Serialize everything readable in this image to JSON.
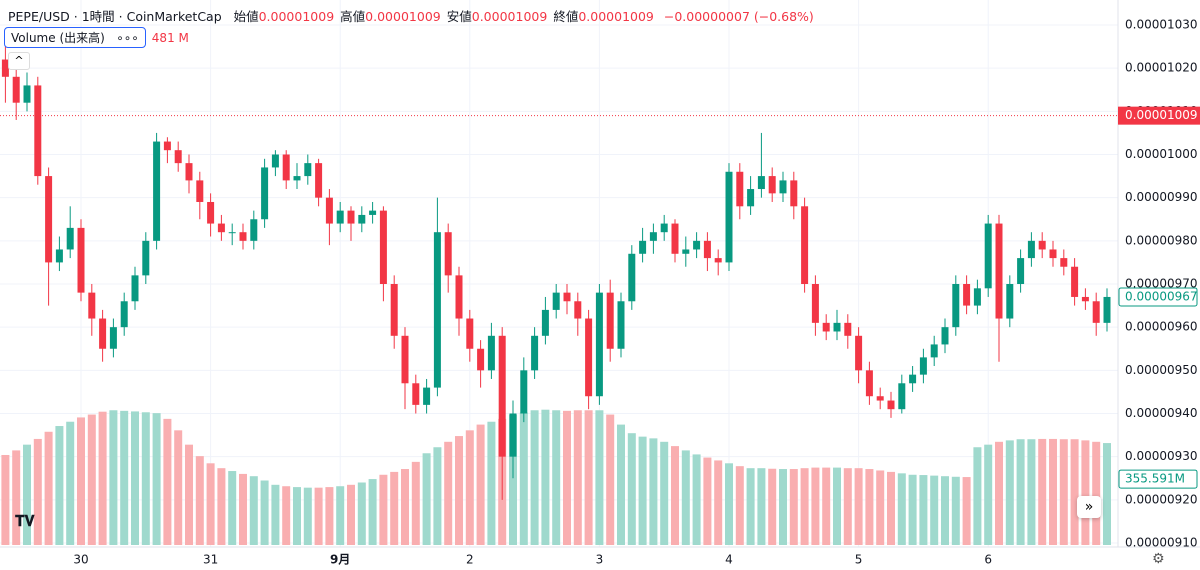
{
  "chart_data": {
    "type": "candlestick",
    "title": "PEPE/USD · 1時間 · CoinMarketCap",
    "legend": [
      {
        "label": "始値",
        "value": "0.00001009"
      },
      {
        "label": "高値",
        "value": "0.00001009"
      },
      {
        "label": "安値",
        "value": "0.00001009"
      },
      {
        "label": "終値",
        "value": "0.00001009"
      }
    ],
    "change": "−0.00000007 (−0.68%)",
    "categories": [
      null,
      null,
      null,
      null,
      null,
      null,
      null,
      "30",
      null,
      null,
      null,
      null,
      null,
      null,
      null,
      null,
      null,
      null,
      null,
      "31",
      null,
      null,
      null,
      null,
      null,
      null,
      null,
      null,
      null,
      null,
      null,
      "9月",
      null,
      null,
      null,
      null,
      null,
      null,
      null,
      null,
      null,
      null,
      null,
      "2",
      null,
      null,
      null,
      null,
      null,
      null,
      null,
      null,
      null,
      null,
      null,
      "3",
      null,
      null,
      null,
      null,
      null,
      null,
      null,
      null,
      null,
      null,
      null,
      "4",
      null,
      null,
      null,
      null,
      null,
      null,
      null,
      null,
      null,
      null,
      null,
      "5",
      null,
      null,
      null,
      null,
      null,
      null,
      null,
      null,
      null,
      null,
      null,
      "6",
      null,
      null,
      null,
      null,
      null,
      null,
      null,
      null,
      null,
      null,
      null
    ],
    "open": [
      1.022e-05,
      1.018e-05,
      1.012e-05,
      1.016e-05,
      9.95e-06,
      9.75e-06,
      9.78e-06,
      9.83e-06,
      9.68e-06,
      9.62e-06,
      9.55e-06,
      9.6e-06,
      9.66e-06,
      9.72e-06,
      9.8e-06,
      1.003e-05,
      1.001e-05,
      9.98e-06,
      9.94e-06,
      9.89e-06,
      9.84e-06,
      9.82e-06,
      9.82e-06,
      9.8e-06,
      9.85e-06,
      9.97e-06,
      1e-05,
      9.94e-06,
      9.95e-06,
      9.98e-06,
      9.9e-06,
      9.84e-06,
      9.87e-06,
      9.84e-06,
      9.86e-06,
      9.87e-06,
      9.7e-06,
      9.58e-06,
      9.47e-06,
      9.42e-06,
      9.46e-06,
      9.82e-06,
      9.72e-06,
      9.62e-06,
      9.55e-06,
      9.5e-06,
      9.58e-06,
      9.3e-06,
      9.4e-06,
      9.5e-06,
      9.58e-06,
      9.64e-06,
      9.68e-06,
      9.66e-06,
      9.62e-06,
      9.44e-06,
      9.68e-06,
      9.55e-06,
      9.66e-06,
      9.77e-06,
      9.8e-06,
      9.82e-06,
      9.84e-06,
      9.77e-06,
      9.78e-06,
      9.8e-06,
      9.76e-06,
      9.75e-06,
      9.96e-06,
      9.88e-06,
      9.92e-06,
      9.95e-06,
      9.91e-06,
      9.94e-06,
      9.88e-06,
      9.7e-06,
      9.61e-06,
      9.59e-06,
      9.61e-06,
      9.58e-06,
      9.5e-06,
      9.44e-06,
      9.43e-06,
      9.41e-06,
      9.47e-06,
      9.49e-06,
      9.53e-06,
      9.56e-06,
      9.6e-06,
      9.7e-06,
      9.65e-06,
      9.69e-06,
      9.84e-06,
      9.62e-06,
      9.7e-06,
      9.76e-06,
      9.8e-06,
      9.78e-06,
      9.76e-06,
      9.74e-06,
      9.67e-06,
      9.66e-06,
      9.61e-06
    ],
    "high": [
      1.025e-05,
      1.02e-05,
      1.019e-05,
      1.018e-05,
      9.97e-06,
      9.81e-06,
      9.88e-06,
      9.85e-06,
      9.7e-06,
      9.64e-06,
      9.62e-06,
      9.68e-06,
      9.74e-06,
      9.82e-06,
      1.005e-05,
      1.004e-05,
      1.003e-05,
      1e-05,
      9.96e-06,
      9.91e-06,
      9.86e-06,
      9.84e-06,
      9.84e-06,
      9.87e-06,
      9.99e-06,
      1.001e-05,
      1.001e-05,
      9.98e-06,
      1e-05,
      9.99e-06,
      9.92e-06,
      9.89e-06,
      9.88e-06,
      9.88e-06,
      9.89e-06,
      9.88e-06,
      9.72e-06,
      9.6e-06,
      9.49e-06,
      9.48e-06,
      9.9e-06,
      9.84e-06,
      9.74e-06,
      9.64e-06,
      9.57e-06,
      9.61e-06,
      9.6e-06,
      9.43e-06,
      9.53e-06,
      9.6e-06,
      9.67e-06,
      9.7e-06,
      9.7e-06,
      9.68e-06,
      9.64e-06,
      9.7e-06,
      9.71e-06,
      9.68e-06,
      9.79e-06,
      9.83e-06,
      9.84e-06,
      9.86e-06,
      9.85e-06,
      9.81e-06,
      9.82e-06,
      9.82e-06,
      9.78e-06,
      9.98e-06,
      9.98e-06,
      9.95e-06,
      1.005e-05,
      9.97e-06,
      9.96e-06,
      9.96e-06,
      9.9e-06,
      9.72e-06,
      9.63e-06,
      9.64e-06,
      9.63e-06,
      9.6e-06,
      9.52e-06,
      9.46e-06,
      9.45e-06,
      9.49e-06,
      9.51e-06,
      9.55e-06,
      9.58e-06,
      9.62e-06,
      9.72e-06,
      9.72e-06,
      9.71e-06,
      9.86e-06,
      9.86e-06,
      9.72e-06,
      9.78e-06,
      9.82e-06,
      9.82e-06,
      9.8e-06,
      9.78e-06,
      9.76e-06,
      9.69e-06,
      9.68e-06,
      9.69e-06
    ],
    "low": [
      1.012e-05,
      1.008e-05,
      1.01e-05,
      9.93e-06,
      9.65e-06,
      9.73e-06,
      9.76e-06,
      9.66e-06,
      9.58e-06,
      9.52e-06,
      9.53e-06,
      9.58e-06,
      9.64e-06,
      9.7e-06,
      9.78e-06,
      9.98e-06,
      9.96e-06,
      9.91e-06,
      9.85e-06,
      9.81e-06,
      9.8e-06,
      9.79e-06,
      9.78e-06,
      9.78e-06,
      9.83e-06,
      9.95e-06,
      9.92e-06,
      9.92e-06,
      9.93e-06,
      9.88e-06,
      9.79e-06,
      9.82e-06,
      9.8e-06,
      9.82e-06,
      9.84e-06,
      9.66e-06,
      9.55e-06,
      9.41e-06,
      9.4e-06,
      9.4e-06,
      9.44e-06,
      9.68e-06,
      9.58e-06,
      9.52e-06,
      9.46e-06,
      9.48e-06,
      9.2e-06,
      9.25e-06,
      9.38e-06,
      9.48e-06,
      9.56e-06,
      9.62e-06,
      9.63e-06,
      9.58e-06,
      9.41e-06,
      9.42e-06,
      9.52e-06,
      9.53e-06,
      9.64e-06,
      9.75e-06,
      9.77e-06,
      9.8e-06,
      9.75e-06,
      9.74e-06,
      9.76e-06,
      9.73e-06,
      9.72e-06,
      9.73e-06,
      9.85e-06,
      9.86e-06,
      9.9e-06,
      9.89e-06,
      9.89e-06,
      9.85e-06,
      9.68e-06,
      9.58e-06,
      9.57e-06,
      9.57e-06,
      9.55e-06,
      9.47e-06,
      9.42e-06,
      9.41e-06,
      9.39e-06,
      9.4e-06,
      9.45e-06,
      9.47e-06,
      9.51e-06,
      9.54e-06,
      9.58e-06,
      9.63e-06,
      9.63e-06,
      9.67e-06,
      9.52e-06,
      9.6e-06,
      9.68e-06,
      9.74e-06,
      9.76e-06,
      9.74e-06,
      9.72e-06,
      9.65e-06,
      9.64e-06,
      9.58e-06,
      9.59e-06
    ],
    "close": [
      1.018e-05,
      1.012e-05,
      1.016e-05,
      9.95e-06,
      9.75e-06,
      9.78e-06,
      9.83e-06,
      9.68e-06,
      9.62e-06,
      9.55e-06,
      9.6e-06,
      9.66e-06,
      9.72e-06,
      9.8e-06,
      1.003e-05,
      1.001e-05,
      9.98e-06,
      9.94e-06,
      9.89e-06,
      9.84e-06,
      9.82e-06,
      9.82e-06,
      9.8e-06,
      9.85e-06,
      9.97e-06,
      1e-05,
      9.94e-06,
      9.95e-06,
      9.98e-06,
      9.9e-06,
      9.84e-06,
      9.87e-06,
      9.84e-06,
      9.86e-06,
      9.87e-06,
      9.7e-06,
      9.58e-06,
      9.47e-06,
      9.42e-06,
      9.46e-06,
      9.82e-06,
      9.72e-06,
      9.62e-06,
      9.55e-06,
      9.5e-06,
      9.58e-06,
      9.3e-06,
      9.4e-06,
      9.5e-06,
      9.58e-06,
      9.64e-06,
      9.68e-06,
      9.66e-06,
      9.62e-06,
      9.44e-06,
      9.68e-06,
      9.55e-06,
      9.66e-06,
      9.77e-06,
      9.8e-06,
      9.82e-06,
      9.84e-06,
      9.77e-06,
      9.78e-06,
      9.8e-06,
      9.76e-06,
      9.75e-06,
      9.96e-06,
      9.88e-06,
      9.92e-06,
      9.95e-06,
      9.91e-06,
      9.94e-06,
      9.88e-06,
      9.7e-06,
      9.61e-06,
      9.59e-06,
      9.61e-06,
      9.58e-06,
      9.5e-06,
      9.44e-06,
      9.43e-06,
      9.41e-06,
      9.47e-06,
      9.49e-06,
      9.53e-06,
      9.56e-06,
      9.6e-06,
      9.7e-06,
      9.65e-06,
      9.69e-06,
      9.84e-06,
      9.62e-06,
      9.7e-06,
      9.76e-06,
      9.8e-06,
      9.78e-06,
      9.76e-06,
      9.74e-06,
      9.67e-06,
      9.66e-06,
      9.61e-06,
      9.67e-06
    ],
    "up_color": "#089981",
    "down_color": "#f23645",
    "ylim": [
      9.1e-06,
      1.03e-05
    ],
    "yticks": [
      {
        "value": 1.03e-05,
        "label": "0.00001030"
      },
      {
        "value": 1.02e-05,
        "label": "0.00001020"
      },
      {
        "value": 1.01e-05,
        "label": "0.00001010"
      },
      {
        "value": 1e-05,
        "label": "0.00001000"
      },
      {
        "value": 9.9e-06,
        "label": "0.00000990"
      },
      {
        "value": 9.8e-06,
        "label": "0.00000980"
      },
      {
        "value": 9.7e-06,
        "label": "0.00000970"
      },
      {
        "value": 9.6e-06,
        "label": "0.00000960"
      },
      {
        "value": 9.5e-06,
        "label": "0.00000950"
      },
      {
        "value": 9.4e-06,
        "label": "0.00000940"
      },
      {
        "value": 9.3e-06,
        "label": "0.00000930"
      },
      {
        "value": 9.2e-06,
        "label": "0.00000920"
      },
      {
        "value": 9.1e-06,
        "label": "0.00000910"
      }
    ],
    "grid": true,
    "price_line": {
      "value": 1.009e-05,
      "label": "0.00001009",
      "color": "#f23645"
    },
    "last_price": {
      "value": 9.67e-06,
      "label": "0.00000967"
    },
    "volume": {
      "name": "Volume (出来高)",
      "header_label": "481 M",
      "ylim": [
        0,
        600
      ],
      "values": [
        314,
        330,
        350,
        370,
        395,
        415,
        430,
        445,
        455,
        465,
        470,
        468,
        466,
        463,
        460,
        440,
        400,
        350,
        310,
        285,
        268,
        258,
        248,
        240,
        225,
        210,
        205,
        202,
        200,
        200,
        202,
        205,
        210,
        218,
        230,
        245,
        255,
        265,
        290,
        320,
        341,
        360,
        380,
        400,
        420,
        430,
        440,
        455,
        462,
        470,
        472,
        470,
        468,
        470,
        470,
        470,
        455,
        420,
        390,
        378,
        372,
        360,
        345,
        330,
        316,
        305,
        295,
        285,
        275,
        268,
        268,
        266,
        265,
        265,
        268,
        270,
        270,
        270,
        268,
        268,
        265,
        260,
        255,
        250,
        245,
        244,
        242,
        240,
        238,
        237,
        341,
        350,
        360,
        365,
        369,
        369,
        370,
        370,
        369,
        369,
        365,
        360,
        355.591
      ],
      "last_label": "355.591M",
      "up_color": "#9fd9cd",
      "down_color": "#f9aeb0"
    }
  }
}
